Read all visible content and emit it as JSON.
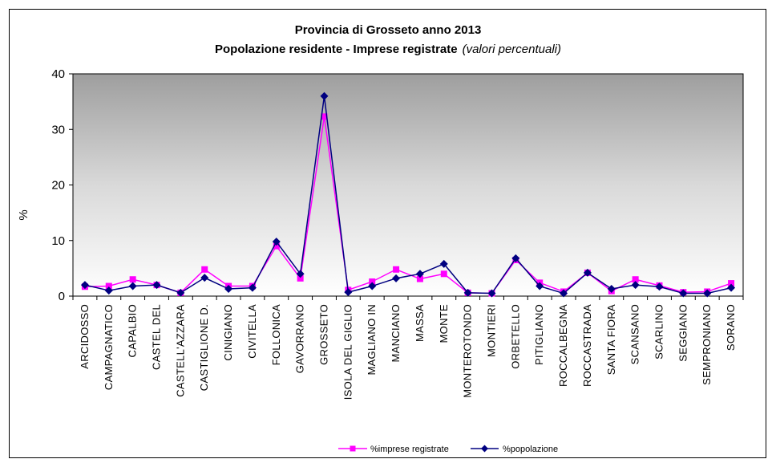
{
  "chart_data": {
    "type": "line",
    "title_line1": "Provincia di Grosseto anno 2013",
    "title_line2_main": "Popolazione residente - Imprese registrate",
    "title_line2_note": "(valori percentuali)",
    "ylabel": "%",
    "xlabel": "",
    "ylim": [
      0,
      40
    ],
    "yticks": [
      "0",
      "10",
      "20",
      "30",
      "40"
    ],
    "grid": false,
    "plot_background": "gradient grey-white",
    "legend_position": "bottom",
    "categories": [
      "ARCIDOSSO",
      "CAMPAGNATICO",
      "CAPALBIO",
      "CASTEL DEL",
      "CASTELL'AZZARA",
      "CASTIGLIONE D.",
      "CINIGIANO",
      "CIVITELLA",
      "FOLLONICA",
      "GAVORRANO",
      "GROSSETO",
      "ISOLA DEL GIGLIO",
      "MAGLIANO IN",
      "MANCIANO",
      "MASSA",
      "MONTE",
      "MONTEROTONDO",
      "MONTIERI",
      "ORBETELLO",
      "PITIGLIANO",
      "ROCCALBEGNA",
      "ROCCASTRADA",
      "SANTA FIORA",
      "SCANSANO",
      "SCARLINO",
      "SEGGIANO",
      "SEMPRONIANO",
      "SORANO"
    ],
    "series": [
      {
        "name": "%imprese registrate",
        "color": "#ff00ff",
        "marker": "square",
        "values": [
          1.7,
          1.8,
          3.0,
          2.0,
          0.6,
          4.8,
          1.8,
          1.8,
          9.0,
          3.2,
          32.3,
          1.1,
          2.6,
          4.8,
          3.1,
          4.0,
          0.6,
          0.5,
          6.5,
          2.4,
          0.8,
          4.2,
          0.9,
          3.0,
          1.9,
          0.7,
          0.8,
          2.3
        ]
      },
      {
        "name": "%popolazione",
        "color": "#000080",
        "marker": "diamond",
        "values": [
          2.0,
          1.0,
          1.8,
          2.0,
          0.6,
          3.3,
          1.3,
          1.5,
          9.8,
          4.0,
          36.0,
          0.7,
          1.8,
          3.2,
          4.0,
          5.8,
          0.6,
          0.5,
          6.8,
          1.8,
          0.5,
          4.2,
          1.3,
          2.0,
          1.7,
          0.5,
          0.5,
          1.5
        ]
      }
    ]
  }
}
